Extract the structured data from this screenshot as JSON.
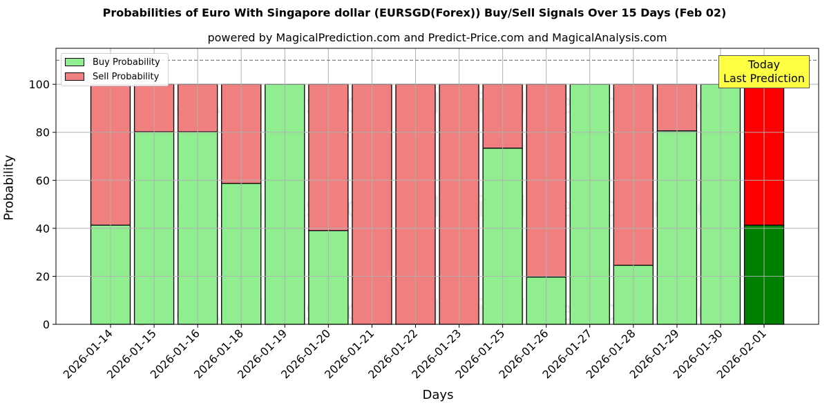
{
  "chart_data": {
    "type": "bar",
    "stacked": true,
    "title": "Probabilities of Euro With Singapore dollar (EURSGD(Forex)) Buy/Sell Signals Over 15 Days (Feb 02)",
    "subtitle": "powered by MagicalPrediction.com and Predict-Price.com and MagicalAnalysis.com",
    "xlabel": "Days",
    "ylabel": "Probability",
    "ylim": [
      0,
      115
    ],
    "yticks": [
      0,
      20,
      40,
      60,
      80,
      100
    ],
    "grid": true,
    "reference_line": {
      "y": 110,
      "style": "dashed",
      "color": "#808080"
    },
    "legend": {
      "position": "upper left",
      "entries": [
        "Buy Probability",
        "Sell Probability"
      ]
    },
    "categories": [
      "2026-01-14",
      "2026-01-15",
      "2026-01-16",
      "2026-01-18",
      "2026-01-19",
      "2026-01-20",
      "2026-01-21",
      "2026-01-22",
      "2026-01-23",
      "2026-01-25",
      "2026-01-26",
      "2026-01-27",
      "2026-01-28",
      "2026-01-29",
      "2026-01-30",
      "2026-02-01"
    ],
    "series": [
      {
        "name": "Buy Probability",
        "color": "#90ee90",
        "highlight_color": "#008000",
        "values": [
          41.3,
          80.2,
          80.2,
          58.7,
          100,
          39.0,
          0,
          0,
          0,
          73.4,
          19.7,
          100,
          24.6,
          80.6,
          100,
          41.3
        ]
      },
      {
        "name": "Sell Probability",
        "color": "#f08080",
        "highlight_color": "#ff0000",
        "values": [
          58.7,
          19.8,
          19.8,
          41.3,
          0,
          61.0,
          100,
          100,
          100,
          26.6,
          80.3,
          0,
          75.4,
          19.4,
          0,
          58.7
        ]
      }
    ],
    "highlight_index": 15,
    "annotation": {
      "line1": "Today",
      "line2": "Last Prediction",
      "background": "#ffff44"
    },
    "watermarks": [
      "MagicalAnalysis.com",
      "MagicalPrediction.com"
    ]
  }
}
